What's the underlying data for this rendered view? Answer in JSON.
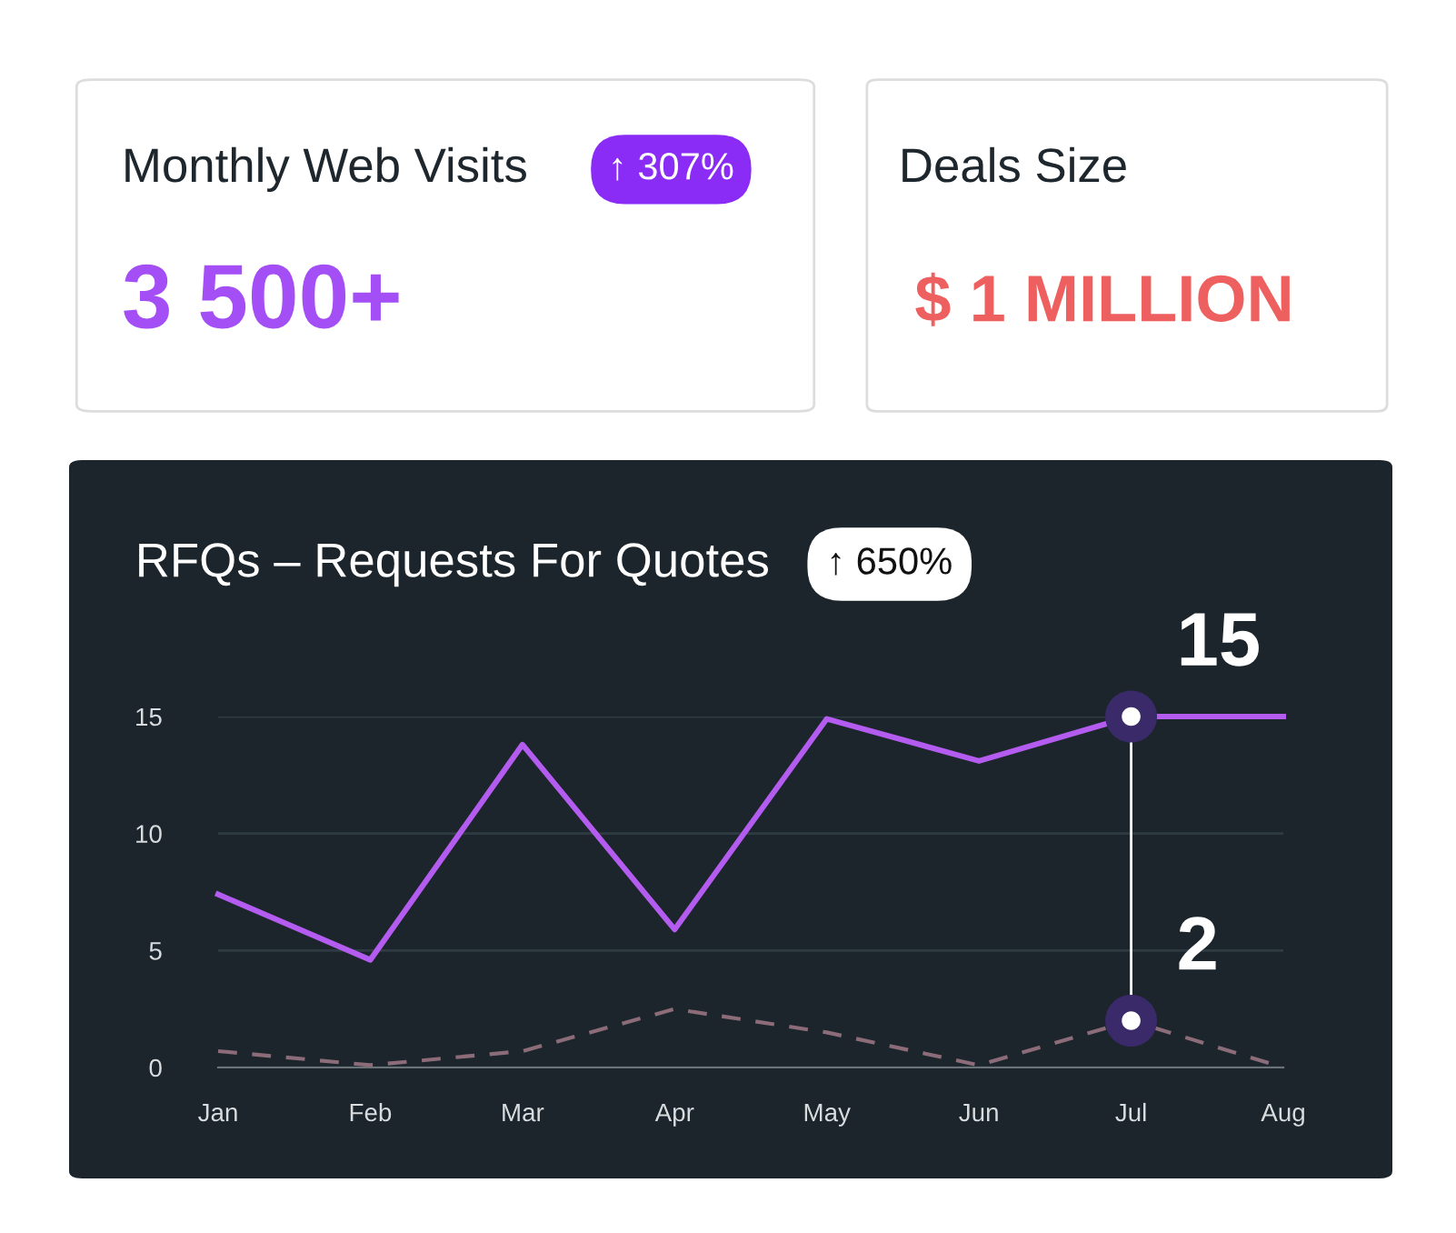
{
  "chart_data": [
    {
      "type": "other",
      "title": "Monthly Web Visits",
      "annotations": [
        "↑ 307%",
        "3 500+"
      ]
    },
    {
      "type": "other",
      "title": "Deals Size",
      "annotations": [
        "$ 1 MILLION"
      ]
    },
    {
      "type": "line",
      "title": "RFQs – Requests For Quotes",
      "annotations": [
        "↑ 650%"
      ],
      "categories": [
        "Jan",
        "Feb",
        "Mar",
        "Apr",
        "May",
        "Jun",
        "Jul",
        "Aug"
      ],
      "series": [
        {
          "color": "#b45cf0",
          "values": [
            7.4,
            4.6,
            13.8,
            5.9,
            14.9,
            13.1,
            15,
            15
          ],
          "value_labels": [
            null,
            null,
            null,
            null,
            null,
            null,
            "15",
            null
          ]
        },
        {
          "color": "#8c6c78",
          "line_style": "dashed",
          "values": [
            0.7,
            0.1,
            0.7,
            2.5,
            1.5,
            0.1,
            2,
            0
          ],
          "value_labels": [
            null,
            null,
            null,
            null,
            null,
            null,
            "2",
            null
          ]
        }
      ],
      "ylim": [
        0,
        15
      ],
      "yticks": [
        0,
        5,
        10,
        15
      ],
      "grid": "y",
      "marker": "none",
      "ref_lines": [
        {
          "axis": "x",
          "value": "Jul",
          "color": "#ffffff"
        }
      ]
    }
  ]
}
